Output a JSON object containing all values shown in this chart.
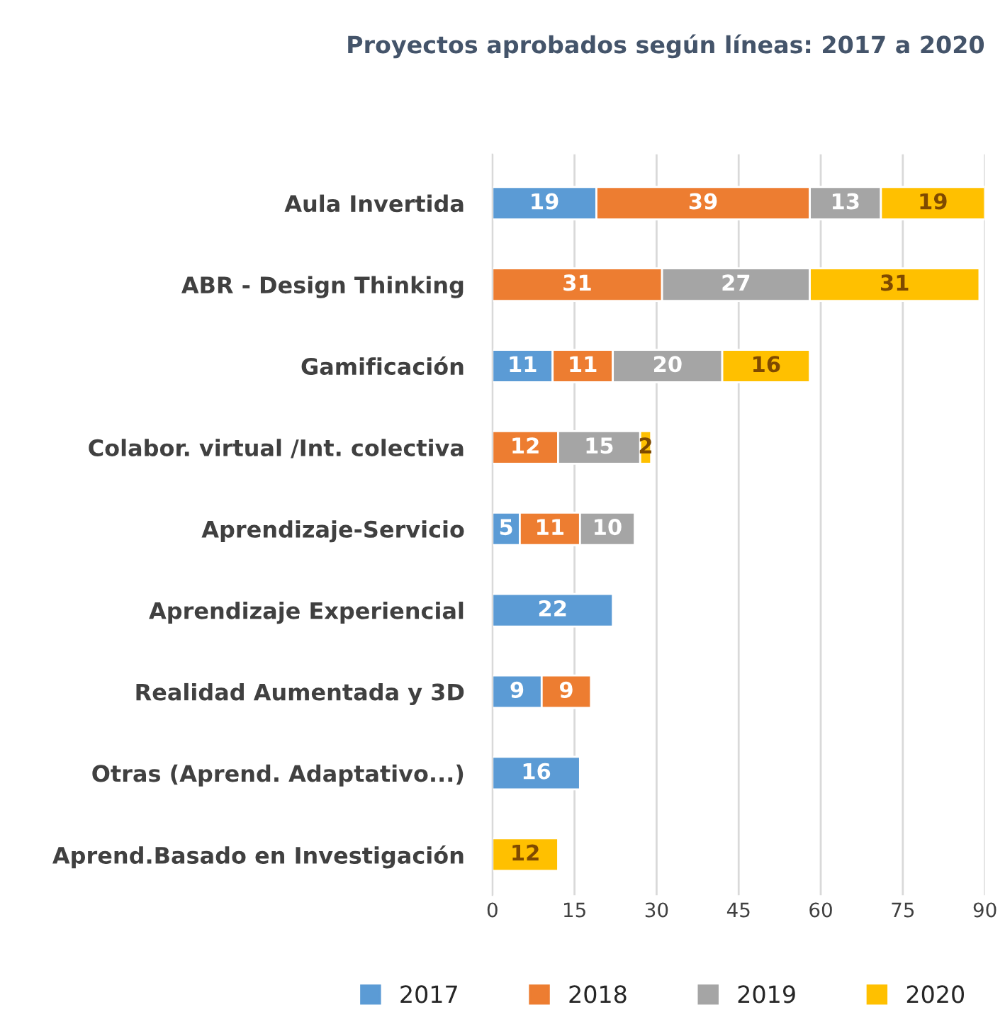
{
  "chart_data": {
    "type": "bar",
    "orientation": "horizontal",
    "stacked": true,
    "title": "Proyectos aprobados según líneas: 2017 a 2020",
    "categories": [
      "Aula Invertida",
      "ABR - Design Thinking",
      "Gamificación",
      "Colabor. virtual /Int. colectiva",
      "Aprendizaje-Servicio",
      "Aprendizaje Experiencial",
      "Realidad Aumentada y 3D",
      "Otras (Aprend. Adaptativo...)",
      "Aprend.Basado en Investigación"
    ],
    "series": [
      {
        "name": "2017",
        "color": "#5b9bd5",
        "values": [
          19,
          null,
          11,
          null,
          5,
          22,
          9,
          16,
          null
        ]
      },
      {
        "name": "2018",
        "color": "#ed7d31",
        "values": [
          39,
          31,
          11,
          12,
          11,
          null,
          9,
          null,
          null
        ]
      },
      {
        "name": "2019",
        "color": "#a5a5a5",
        "values": [
          13,
          27,
          20,
          15,
          10,
          null,
          null,
          null,
          null
        ]
      },
      {
        "name": "2020",
        "color": "#ffc000",
        "values": [
          19,
          31,
          16,
          2,
          null,
          null,
          null,
          null,
          12
        ]
      }
    ],
    "xlim": [
      0,
      90
    ],
    "xticks": [
      0,
      15,
      30,
      45,
      60,
      75,
      90
    ],
    "grid": "x",
    "legend": "bottom",
    "data_labels": true
  }
}
